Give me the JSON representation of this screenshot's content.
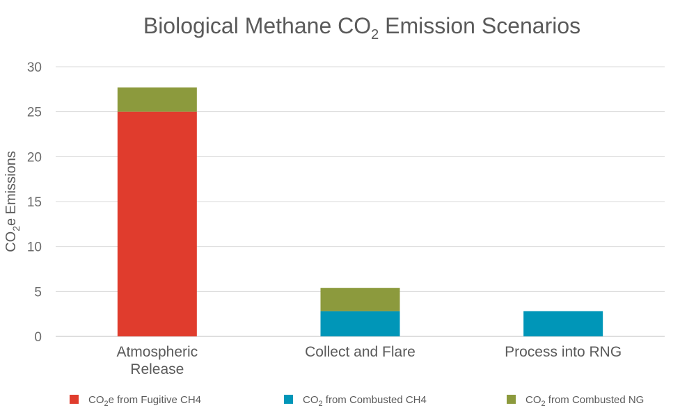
{
  "chart_data": {
    "type": "bar",
    "stacked": true,
    "title": {
      "main": "Biological Methane CO",
      "sub": "2",
      "tail": " Emission Scenarios"
    },
    "ylabel": {
      "pre": "CO",
      "sub": "2",
      "post": "e Emissions"
    },
    "ylim": [
      0,
      30
    ],
    "yticks": [
      0,
      5,
      10,
      15,
      20,
      25,
      30
    ],
    "grid": true,
    "legend_position": "bottom",
    "categories": [
      [
        "Atmospheric",
        "Release"
      ],
      [
        "Collect and Flare"
      ],
      [
        "Process into RNG"
      ]
    ],
    "series": [
      {
        "name": "CO2e from Fugitive CH4",
        "label": {
          "pre": "CO",
          "sub": "2",
          "post": "e from Fugitive CH4"
        },
        "color": "#e03c2d",
        "values": [
          25,
          0,
          0
        ]
      },
      {
        "name": "CO2 from Combusted CH4",
        "label": {
          "pre": "CO",
          "sub": "2",
          "post": " from Combusted CH4"
        },
        "color": "#0096b8",
        "values": [
          0,
          2.8,
          2.8
        ]
      },
      {
        "name": "CO2 from Combusted NG",
        "label": {
          "pre": "CO",
          "sub": "2",
          "post": " from Combusted NG"
        },
        "color": "#8c9a3d",
        "values": [
          2.7,
          2.6,
          0
        ]
      }
    ]
  }
}
